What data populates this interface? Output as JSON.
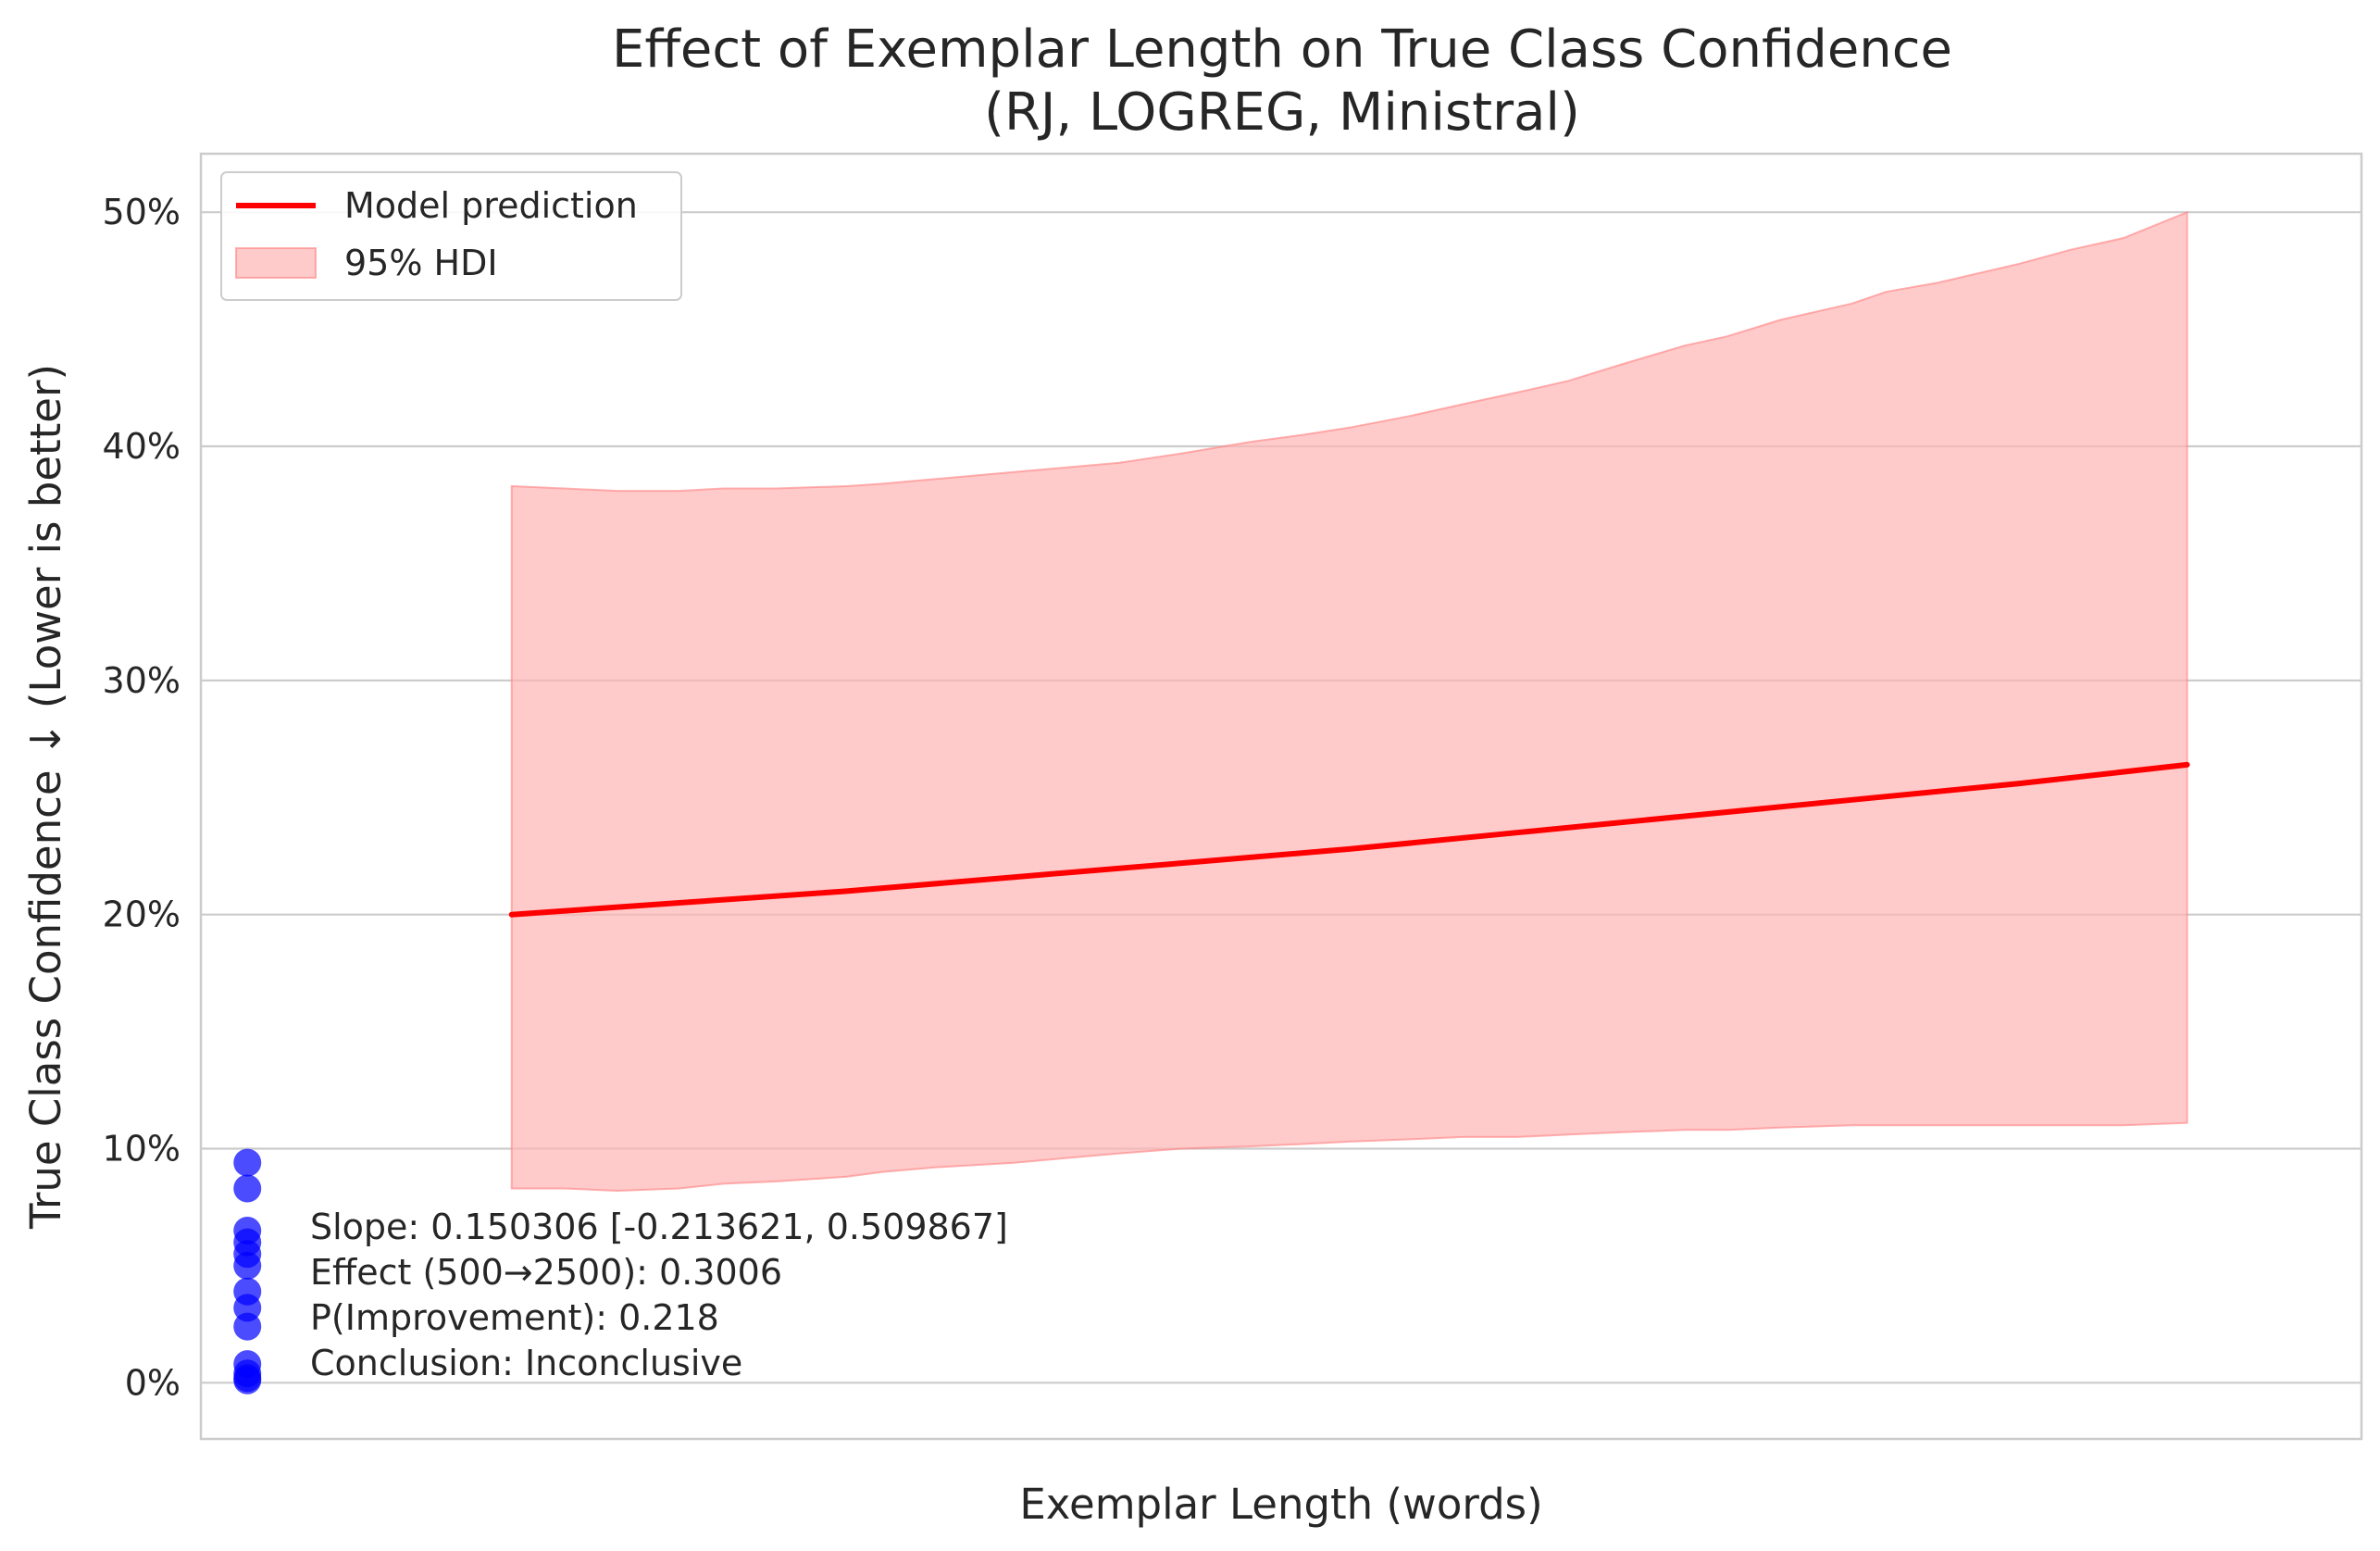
{
  "chart_data": {
    "type": "line",
    "title": "Effect of Exemplar Length on True Class Confidence",
    "subtitle": "(RJ, LOGREG, Ministral)",
    "xlabel": "Exemplar Length (words)",
    "ylabel": "True Class Confidence ↓ (Lower is better)",
    "ylim": [
      -0.024,
      0.525
    ],
    "yticks": [
      0,
      0.1,
      0.2,
      0.3,
      0.4,
      0.5
    ],
    "ytick_labels": [
      "0%",
      "10%",
      "20%",
      "30%",
      "40%",
      "50%"
    ],
    "xlim": [
      -88,
      4000
    ],
    "grid": "horizontal",
    "legend_position": "top-left",
    "legend": {
      "line_label": "Model prediction",
      "band_label": "95% HDI"
    },
    "colors": {
      "line": "#ff0000",
      "band": "#ffb3b3",
      "band_edge": "#ff8080",
      "points": "#0000ff"
    },
    "prediction": {
      "x": [
        500,
        3670
      ],
      "x_samples": [
        500,
        817,
        1134,
        1451,
        1768,
        2085,
        2402,
        2719,
        3036,
        3353,
        3670
      ],
      "y": [
        0.2,
        0.205,
        0.21,
        0.216,
        0.222,
        0.228,
        0.235,
        0.242,
        0.249,
        0.256,
        0.264
      ]
    },
    "hdi": {
      "x": [
        500,
        600,
        700,
        817,
        900,
        1000,
        1134,
        1200,
        1300,
        1451,
        1550,
        1650,
        1768,
        1900,
        2000,
        2085,
        2200,
        2300,
        2402,
        2500,
        2600,
        2719,
        2800,
        2900,
        3036,
        3100,
        3200,
        3353,
        3450,
        3550,
        3670
      ],
      "lower": [
        0.083,
        0.083,
        0.082,
        0.083,
        0.085,
        0.086,
        0.088,
        0.09,
        0.092,
        0.094,
        0.096,
        0.098,
        0.1,
        0.101,
        0.102,
        0.103,
        0.104,
        0.105,
        0.105,
        0.106,
        0.107,
        0.108,
        0.108,
        0.109,
        0.11,
        0.11,
        0.11,
        0.11,
        0.11,
        0.11,
        0.111
      ],
      "upper": [
        0.383,
        0.382,
        0.381,
        0.381,
        0.382,
        0.382,
        0.383,
        0.384,
        0.386,
        0.389,
        0.391,
        0.393,
        0.397,
        0.402,
        0.405,
        0.408,
        0.413,
        0.418,
        0.423,
        0.428,
        0.435,
        0.443,
        0.447,
        0.454,
        0.461,
        0.466,
        0.47,
        0.478,
        0.484,
        0.489,
        0.5
      ]
    },
    "points": {
      "x": [
        0,
        0,
        0,
        0,
        0,
        0,
        0,
        0,
        0,
        0,
        0,
        0,
        0
      ],
      "y": [
        0.094,
        0.083,
        0.065,
        0.06,
        0.055,
        0.05,
        0.039,
        0.032,
        0.024,
        0.008,
        0.004,
        0.002,
        0.001
      ]
    },
    "annotation": {
      "slope": "Slope: 0.150306 [-0.213621, 0.509867]",
      "effect": "Effect (500→2500): 0.3006",
      "p_improvement": "P(Improvement): 0.218",
      "conclusion": "Conclusion: Inconclusive"
    }
  }
}
